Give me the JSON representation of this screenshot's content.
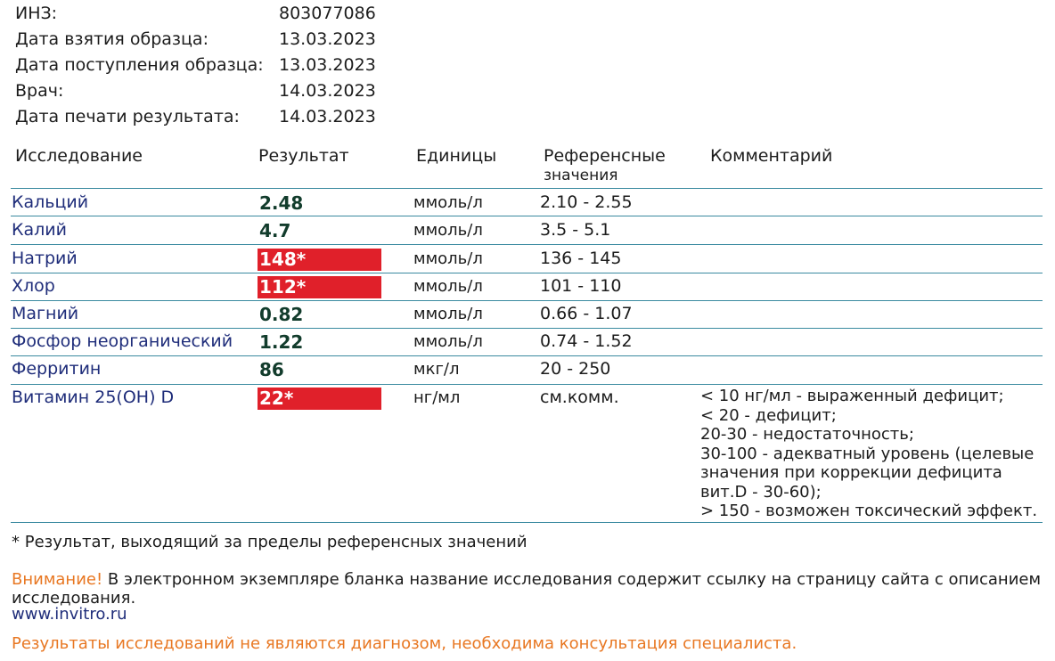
{
  "header": [
    {
      "label": "ИНЗ:",
      "value": "803077086"
    },
    {
      "label": "Дата взятия образца:",
      "value": "13.03.2023"
    },
    {
      "label": "Дата поступления образца:",
      "value": "13.03.2023"
    },
    {
      "label": "Врач:",
      "value": "14.03.2023"
    },
    {
      "label": "Дата печати результата:",
      "value": "14.03.2023"
    }
  ],
  "columns": {
    "test": "Исследование",
    "result": "Результат",
    "units": "Единицы",
    "reference_line1": "Референсные",
    "reference_line2": "значения",
    "comment": "Комментарий"
  },
  "rows": [
    {
      "name": "Кальций",
      "result": "2.48",
      "out_of_range": false,
      "units": "ммоль/л",
      "reference": "2.10 - 2.55"
    },
    {
      "name": "Калий",
      "result": "4.7",
      "out_of_range": false,
      "units": "ммоль/л",
      "reference": "3.5 - 5.1"
    },
    {
      "name": "Натрий",
      "result": "148*",
      "out_of_range": true,
      "units": "ммоль/л",
      "reference": "136 - 145"
    },
    {
      "name": "Хлор",
      "result": "112*",
      "out_of_range": true,
      "units": "ммоль/л",
      "reference": "101 - 110"
    },
    {
      "name": "Магний",
      "result": "0.82",
      "out_of_range": false,
      "units": "ммоль/л",
      "reference": "0.66 - 1.07"
    },
    {
      "name": "Фосфор неорганический",
      "result": "1.22",
      "out_of_range": false,
      "units": "ммоль/л",
      "reference": "0.74 - 1.52"
    },
    {
      "name": "Ферритин",
      "result": "86",
      "out_of_range": false,
      "units": "мкг/л",
      "reference": "20 - 250"
    },
    {
      "name": "Витамин 25(OH) D",
      "result": "22*",
      "out_of_range": true,
      "units": "нг/мл",
      "reference": "см.комм."
    }
  ],
  "vitamin_d_comment": [
    "< 10 нг/мл - выраженный дефицит;",
    "< 20 - дефицит;",
    "20-30 - недостаточность;",
    "30-100 - адекватный уровень (целевые",
    "значения при коррекции дефицита",
    "вит.D - 30-60);",
    "> 150 - возможен токсический эффект."
  ],
  "footnote": "* Результат, выходящий за пределы референсных значений",
  "attention": {
    "label": "Внимание!",
    "text_line1": " В электронном экземпляре бланка название исследования содержит ссылку на страницу сайта с описанием",
    "text_line2": "исследования.",
    "url": "www.invitro.ru"
  },
  "disclaimer": "Результаты исследований не являются диагнозом, необходима консультация специалиста.",
  "colors": {
    "out_of_range_bg": "#e0202a",
    "warning": "#e87722",
    "test_name": "#1f2d7a",
    "divider": "#3a8aa0"
  }
}
